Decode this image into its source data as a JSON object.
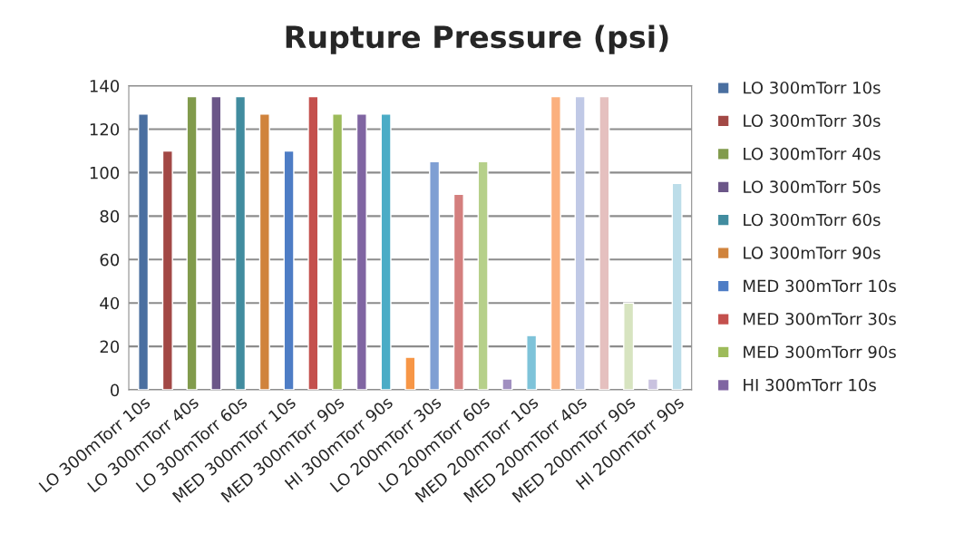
{
  "chart_data": {
    "type": "bar",
    "title": "Rupture Pressure (psi)",
    "categories": [
      "LO 300mTorr 10s",
      null,
      "LO 300mTorr 40s",
      null,
      "LO 300mTorr 60s",
      null,
      "MED 300mTorr 10s",
      null,
      "MED 300mTorr 90s",
      null,
      "HI 300mTorr 90s",
      null,
      "LO 200mTorr 30s",
      null,
      "LO 200mTorr 60s",
      null,
      "MED 200mTorr 10s",
      null,
      "MED 200mTorr 40s",
      null,
      "MED 200mTorr 90s",
      null,
      "HI 200mTorr 90s"
    ],
    "series": [
      {
        "name": "LO 300mTorr 10s",
        "color": "#4a6fa0",
        "values": [
          127,
          null,
          null,
          null,
          null,
          null,
          null,
          null,
          null,
          null,
          null,
          null,
          null,
          null,
          null,
          null,
          null,
          null,
          null,
          null,
          null,
          null,
          null
        ]
      },
      {
        "name": "LO 300mTorr 30s",
        "color": "#a24845",
        "values": [
          null,
          110,
          null,
          null,
          null,
          null,
          null,
          null,
          null,
          null,
          null,
          null,
          null,
          null,
          null,
          null,
          null,
          null,
          null,
          null,
          null,
          null,
          null
        ]
      },
      {
        "name": "LO 300mTorr 40s",
        "color": "#819b4c",
        "values": [
          null,
          null,
          135,
          null,
          null,
          null,
          null,
          null,
          null,
          null,
          null,
          null,
          null,
          null,
          null,
          null,
          null,
          null,
          null,
          null,
          null,
          null,
          null
        ]
      },
      {
        "name": "LO 300mTorr 50s",
        "color": "#6b5688",
        "values": [
          null,
          null,
          null,
          135,
          null,
          null,
          null,
          null,
          null,
          null,
          null,
          null,
          null,
          null,
          null,
          null,
          null,
          null,
          null,
          null,
          null,
          null,
          null
        ]
      },
      {
        "name": "LO 300mTorr 60s",
        "color": "#418c9f",
        "values": [
          null,
          null,
          null,
          null,
          135,
          null,
          null,
          null,
          null,
          null,
          null,
          null,
          null,
          null,
          null,
          null,
          null,
          null,
          null,
          null,
          null,
          null,
          null
        ]
      },
      {
        "name": "LO 300mTorr 90s",
        "color": "#d0833c",
        "values": [
          null,
          null,
          null,
          null,
          null,
          127,
          null,
          null,
          null,
          null,
          null,
          null,
          null,
          null,
          null,
          null,
          null,
          null,
          null,
          null,
          null,
          null,
          null
        ]
      },
      {
        "name": "MED 300mTorr 10s",
        "color": "#4e7dc5",
        "values": [
          null,
          null,
          null,
          null,
          null,
          null,
          110,
          null,
          null,
          null,
          null,
          null,
          null,
          null,
          null,
          null,
          null,
          null,
          null,
          null,
          null,
          null,
          null
        ]
      },
      {
        "name": "MED 300mTorr 30s",
        "color": "#c4504d",
        "values": [
          null,
          null,
          null,
          null,
          null,
          null,
          null,
          135,
          null,
          null,
          null,
          null,
          null,
          null,
          null,
          null,
          null,
          null,
          null,
          null,
          null,
          null,
          null
        ]
      },
      {
        "name": "MED 300mTorr 90s",
        "color": "#9dbb5a",
        "values": [
          null,
          null,
          null,
          null,
          null,
          null,
          null,
          null,
          127,
          null,
          null,
          null,
          null,
          null,
          null,
          null,
          null,
          null,
          null,
          null,
          null,
          null,
          null
        ]
      },
      {
        "name": "HI 300mTorr 10s",
        "color": "#8065a2",
        "values": [
          null,
          null,
          null,
          null,
          null,
          null,
          null,
          null,
          null,
          127,
          null,
          null,
          null,
          null,
          null,
          null,
          null,
          null,
          null,
          null,
          null,
          null,
          null
        ]
      },
      {
        "color": "#4bacc6",
        "values": [
          null,
          null,
          null,
          null,
          null,
          null,
          null,
          null,
          null,
          null,
          127,
          null,
          null,
          null,
          null,
          null,
          null,
          null,
          null,
          null,
          null,
          null,
          null
        ]
      },
      {
        "color": "#f79646",
        "values": [
          null,
          null,
          null,
          null,
          null,
          null,
          null,
          null,
          null,
          null,
          null,
          15,
          null,
          null,
          null,
          null,
          null,
          null,
          null,
          null,
          null,
          null,
          null
        ]
      },
      {
        "color": "#7f9fd3",
        "values": [
          null,
          null,
          null,
          null,
          null,
          null,
          null,
          null,
          null,
          null,
          null,
          null,
          105,
          null,
          null,
          null,
          null,
          null,
          null,
          null,
          null,
          null,
          null
        ]
      },
      {
        "color": "#d47f7e",
        "values": [
          null,
          null,
          null,
          null,
          null,
          null,
          null,
          null,
          null,
          null,
          null,
          null,
          null,
          90,
          null,
          null,
          null,
          null,
          null,
          null,
          null,
          null,
          null
        ]
      },
      {
        "color": "#b6d08a",
        "values": [
          null,
          null,
          null,
          null,
          null,
          null,
          null,
          null,
          null,
          null,
          null,
          null,
          null,
          null,
          105,
          null,
          null,
          null,
          null,
          null,
          null,
          null,
          null
        ]
      },
      {
        "color": "#a08fc0",
        "values": [
          null,
          null,
          null,
          null,
          null,
          null,
          null,
          null,
          null,
          null,
          null,
          null,
          null,
          null,
          null,
          5,
          null,
          null,
          null,
          null,
          null,
          null,
          null
        ]
      },
      {
        "color": "#7ec3d9",
        "values": [
          null,
          null,
          null,
          null,
          null,
          null,
          null,
          null,
          null,
          null,
          null,
          null,
          null,
          null,
          null,
          null,
          25,
          null,
          null,
          null,
          null,
          null,
          null
        ]
      },
      {
        "color": "#fbb07e",
        "values": [
          null,
          null,
          null,
          null,
          null,
          null,
          null,
          null,
          null,
          null,
          null,
          null,
          null,
          null,
          null,
          null,
          null,
          135,
          null,
          null,
          null,
          null,
          null
        ]
      },
      {
        "color": "#c0c9e6",
        "values": [
          null,
          null,
          null,
          null,
          null,
          null,
          null,
          null,
          null,
          null,
          null,
          null,
          null,
          null,
          null,
          null,
          null,
          null,
          135,
          null,
          null,
          null,
          null
        ]
      },
      {
        "color": "#e5c0bf",
        "values": [
          null,
          null,
          null,
          null,
          null,
          null,
          null,
          null,
          null,
          null,
          null,
          null,
          null,
          null,
          null,
          null,
          null,
          null,
          null,
          135,
          null,
          null,
          null
        ]
      },
      {
        "color": "#d7e4c0",
        "values": [
          null,
          null,
          null,
          null,
          null,
          null,
          null,
          null,
          null,
          null,
          null,
          null,
          null,
          null,
          null,
          null,
          null,
          null,
          null,
          null,
          40,
          null,
          null
        ]
      },
      {
        "color": "#c9c2df",
        "values": [
          null,
          null,
          null,
          null,
          null,
          null,
          null,
          null,
          null,
          null,
          null,
          null,
          null,
          null,
          null,
          null,
          null,
          null,
          null,
          null,
          null,
          5,
          null
        ]
      },
      {
        "color": "#bcdde9",
        "values": [
          null,
          null,
          null,
          null,
          null,
          null,
          null,
          null,
          null,
          null,
          null,
          null,
          null,
          null,
          null,
          null,
          null,
          null,
          null,
          null,
          null,
          null,
          95
        ]
      }
    ],
    "ylim": [
      0,
      140
    ],
    "yticks": [
      0,
      20,
      40,
      60,
      80,
      100,
      120,
      140
    ],
    "grid": "y",
    "legend": "right"
  }
}
